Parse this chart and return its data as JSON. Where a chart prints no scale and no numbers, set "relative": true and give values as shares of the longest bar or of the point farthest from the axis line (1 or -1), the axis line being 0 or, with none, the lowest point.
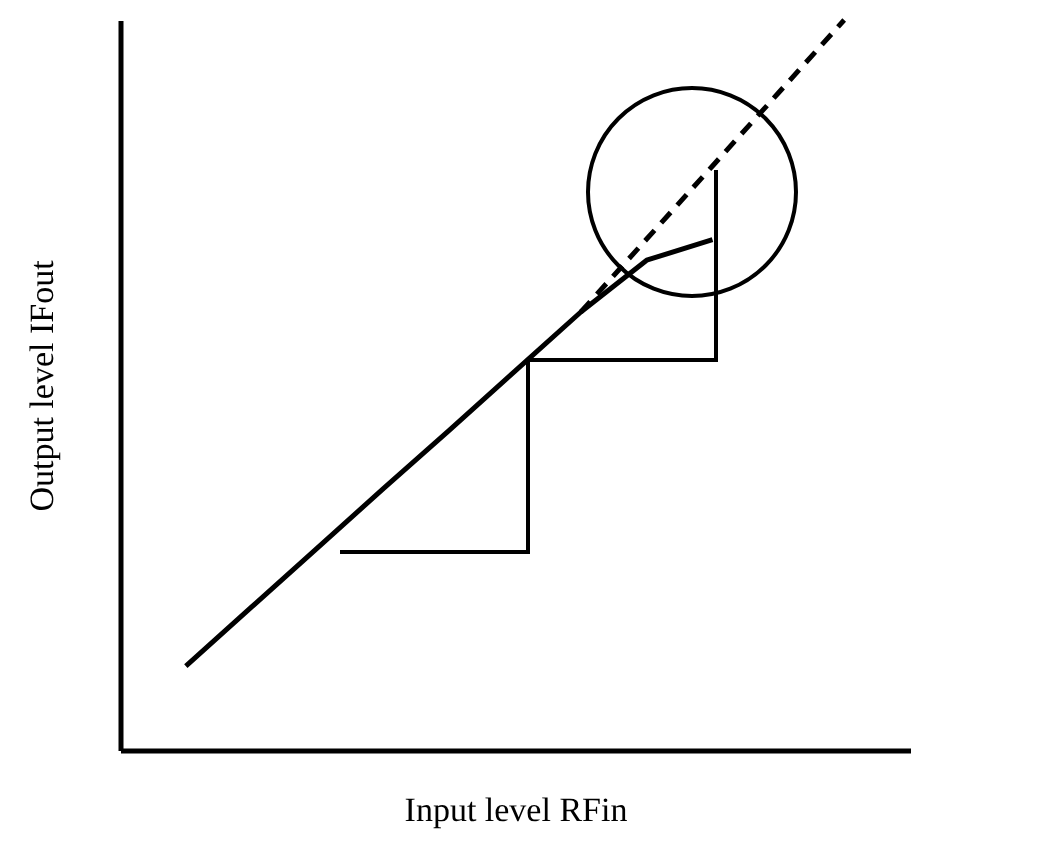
{
  "chart_data": {
    "type": "line",
    "relative": true,
    "xlabel": "Input level RFin",
    "ylabel": "Output level IFout",
    "categories": [
      null,
      null,
      null,
      null,
      null,
      null,
      null,
      null,
      null,
      null,
      null
    ],
    "series": [
      {
        "color": "#000000",
        "line_style": "solid",
        "values": [
          0.115,
          0.196,
          0.277,
          0.358,
          0.438,
          0.519,
          0.6,
          0.671,
          0.699,
          null,
          null
        ]
      },
      {
        "color": "#000000",
        "line_style": "dashed",
        "values": [
          null,
          null,
          null,
          null,
          null,
          null,
          0.6,
          0.7,
          0.8,
          0.9,
          1.0
        ]
      }
    ]
  }
}
